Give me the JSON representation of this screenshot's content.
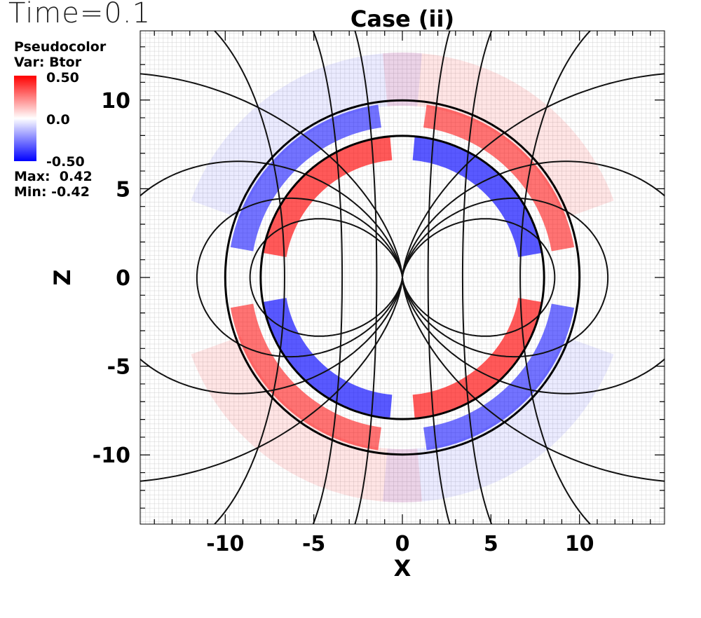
{
  "header": {
    "time_label": "Time=0.1",
    "title": "Case (ii)"
  },
  "legend": {
    "line1": "Pseudocolor",
    "line2": "Var: Btor",
    "cbar_max": "0.50",
    "cbar_mid": "0.0",
    "cbar_min": "-0.50",
    "max_text": "Max:  0.42",
    "min_text": "Min: -0.42"
  },
  "colors": {
    "positive": "#ff0000",
    "zero": "#ffffff",
    "negative": "#0000ff",
    "contour": "#111111",
    "mesh": "#c8c8c8"
  },
  "chart_data": {
    "type": "heatmap",
    "variable": "Btor",
    "title": "Case (ii)",
    "xlabel": "X",
    "ylabel": "Z",
    "xlim": [
      -14.8,
      14.8
    ],
    "ylim": [
      -13.9,
      13.9
    ],
    "x_ticks": [
      -10,
      -5,
      0,
      5,
      10
    ],
    "y_ticks": [
      -10,
      -5,
      0,
      5,
      10
    ],
    "x_tick_labels": [
      "-10",
      "-5",
      "0",
      "5",
      "10"
    ],
    "y_tick_labels": [
      "-10",
      "-5",
      "0",
      "5",
      "10"
    ],
    "colorbar_range": [
      -0.5,
      0.5
    ],
    "field_max": 0.42,
    "field_min": -0.42,
    "boundary_radii": [
      8,
      10
    ],
    "grid": true
  }
}
